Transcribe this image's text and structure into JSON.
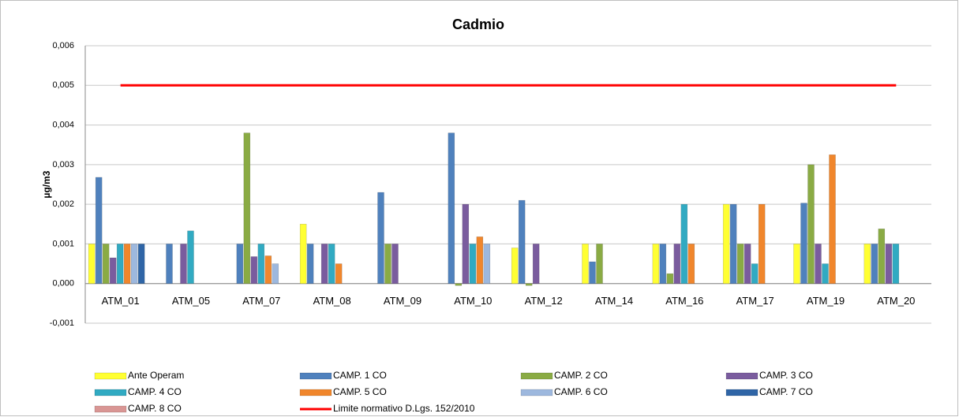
{
  "chart_data": {
    "type": "bar",
    "title": "Cadmio",
    "y_label": "µg/m3",
    "categories": [
      "ATM_01",
      "ATM_05",
      "ATM_07",
      "ATM_08",
      "ATM_09",
      "ATM_10",
      "ATM_12",
      "ATM_14",
      "ATM_16",
      "ATM_17",
      "ATM_19",
      "ATM_20"
    ],
    "series": [
      {
        "name": "Ante Operam",
        "color": "#ffff33",
        "values": [
          0.001,
          null,
          null,
          0.0015,
          null,
          null,
          0.0009,
          0.001,
          0.001,
          0.002,
          0.001,
          0.001
        ]
      },
      {
        "name": "CAMP. 1 CO",
        "color": "#4f81bd",
        "values": [
          0.00268,
          0.001,
          0.001,
          0.001,
          0.0023,
          0.0038,
          0.0021,
          0.00055,
          0.001,
          0.002,
          0.00203,
          0.001
        ]
      },
      {
        "name": "CAMP. 2 CO",
        "color": "#8aab44",
        "values": [
          0.001,
          null,
          0.0038,
          null,
          0.001,
          -5e-05,
          -5e-05,
          0.001,
          0.00025,
          0.001,
          0.003,
          0.00138
        ]
      },
      {
        "name": "CAMP. 3 CO",
        "color": "#7a5c9e",
        "values": [
          0.00065,
          0.001,
          0.00068,
          0.001,
          0.001,
          0.002,
          0.001,
          null,
          0.001,
          0.001,
          0.001,
          0.001
        ]
      },
      {
        "name": "CAMP. 4 CO",
        "color": "#31aac2",
        "values": [
          0.001,
          0.00133,
          0.001,
          0.001,
          null,
          0.001,
          null,
          null,
          0.002,
          0.0005,
          0.0005,
          0.001
        ]
      },
      {
        "name": "CAMP. 5 CO",
        "color": "#f0862c",
        "values": [
          0.001,
          null,
          0.0007,
          0.0005,
          null,
          0.00118,
          null,
          null,
          0.001,
          0.002,
          0.00325,
          null
        ]
      },
      {
        "name": "CAMP. 6 CO",
        "color": "#9db8de",
        "values": [
          0.001,
          null,
          0.0005,
          null,
          null,
          0.001,
          null,
          null,
          null,
          null,
          null,
          null
        ]
      },
      {
        "name": "CAMP. 7 CO",
        "color": "#2f65a6",
        "values": [
          0.001,
          null,
          null,
          null,
          null,
          null,
          null,
          null,
          null,
          null,
          null,
          null
        ]
      },
      {
        "name": "CAMP. 8 CO",
        "color": "#d99694",
        "values": [
          null,
          null,
          null,
          null,
          null,
          null,
          null,
          null,
          null,
          null,
          null,
          null
        ]
      },
      {
        "name": "Limite normativo D.Lgs. 152/2010",
        "color": "#ff0000",
        "type": "line",
        "values": [
          0.005,
          0.005,
          0.005,
          0.005,
          0.005,
          0.005,
          0.005,
          0.005,
          0.005,
          0.005,
          0.005,
          0.005
        ]
      }
    ],
    "ylim": [
      -0.001,
      0.006
    ],
    "yticks": [
      {
        "value": -0.001,
        "label": "-0,001"
      },
      {
        "value": 0,
        "label": "0,000"
      },
      {
        "value": 0.001,
        "label": "0,001"
      },
      {
        "value": 0.002,
        "label": "0,002"
      },
      {
        "value": 0.003,
        "label": "0,003"
      },
      {
        "value": 0.004,
        "label": "0,004"
      },
      {
        "value": 0.005,
        "label": "0,005"
      },
      {
        "value": 0.006,
        "label": "0,006"
      }
    ],
    "grid": true
  }
}
